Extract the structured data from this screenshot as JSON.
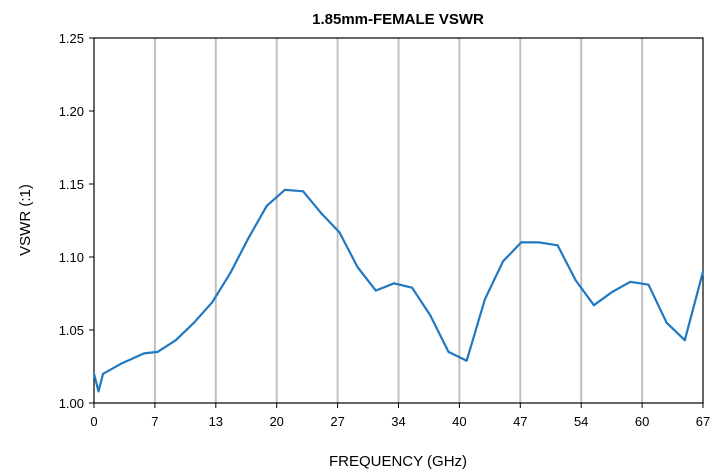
{
  "chart_data": {
    "type": "line",
    "title": "1.85mm-FEMALE VSWR",
    "xlabel": "FREQUENCY  (GHz)",
    "ylabel": "VSWR (:1)",
    "xlim": [
      0,
      67
    ],
    "ylim": [
      1.0,
      1.25
    ],
    "x_tick_labels": [
      "0",
      "7",
      "13",
      "20",
      "27",
      "34",
      "40",
      "47",
      "54",
      "60",
      "67"
    ],
    "y_tick_labels": [
      "1.00",
      "1.05",
      "1.10",
      "1.15",
      "1.20",
      "1.25"
    ],
    "grid": "vertical",
    "legend": "none",
    "series": [
      {
        "color": "#1f78c1",
        "x": [
          0,
          0.5,
          1,
          3,
          5.5,
          7,
          9,
          11,
          13,
          15,
          17,
          19,
          21,
          23,
          25,
          27,
          29,
          31,
          33,
          35,
          37,
          39,
          41,
          43,
          45,
          47,
          49,
          51,
          53,
          55,
          57,
          59,
          61,
          63,
          65,
          67
        ],
        "values": [
          1.02,
          1.008,
          1.02,
          1.027,
          1.034,
          1.035,
          1.043,
          1.055,
          1.069,
          1.089,
          1.113,
          1.135,
          1.146,
          1.145,
          1.13,
          1.117,
          1.093,
          1.077,
          1.082,
          1.079,
          1.06,
          1.035,
          1.029,
          1.071,
          1.097,
          1.11,
          1.11,
          1.108,
          1.084,
          1.067,
          1.076,
          1.083,
          1.081,
          1.055,
          1.043,
          1.09
        ]
      }
    ]
  }
}
